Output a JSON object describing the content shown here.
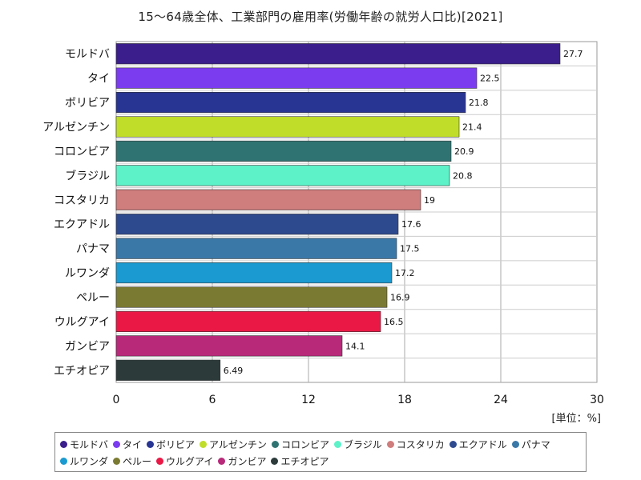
{
  "chart_data": {
    "type": "bar",
    "orientation": "horizontal",
    "title": "15〜64歳全体、工業部門の雇用率(労働年齢の就労人口比)[2021]",
    "unit_label": "[単位：%]",
    "xlim": [
      0,
      30
    ],
    "xticks": [
      0,
      6,
      12,
      18,
      24,
      30
    ],
    "grid": true,
    "legend_position": "bottom",
    "categories": [
      "モルドバ",
      "タイ",
      "ボリビア",
      "アルゼンチン",
      "コロンビア",
      "ブラジル",
      "コスタリカ",
      "エクアドル",
      "パナマ",
      "ルワンダ",
      "ペルー",
      "ウルグアイ",
      "ガンビア",
      "エチオピア"
    ],
    "values": [
      27.7,
      22.5,
      21.8,
      21.4,
      20.9,
      20.8,
      19,
      17.6,
      17.5,
      17.2,
      16.9,
      16.5,
      14.1,
      6.49
    ],
    "value_labels": [
      "27.7",
      "22.5",
      "21.8",
      "21.4",
      "20.9",
      "20.8",
      "19",
      "17.6",
      "17.5",
      "17.2",
      "16.9",
      "16.5",
      "14.1",
      "6.49"
    ],
    "colors": [
      "#3b1e8c",
      "#7b3cf0",
      "#283593",
      "#c0dd2a",
      "#2f7472",
      "#5df2c8",
      "#cf7d7d",
      "#2e4a8f",
      "#3a78a8",
      "#1a9ad0",
      "#7b7a33",
      "#ea1845",
      "#b8297a",
      "#2c3a3a"
    ]
  }
}
